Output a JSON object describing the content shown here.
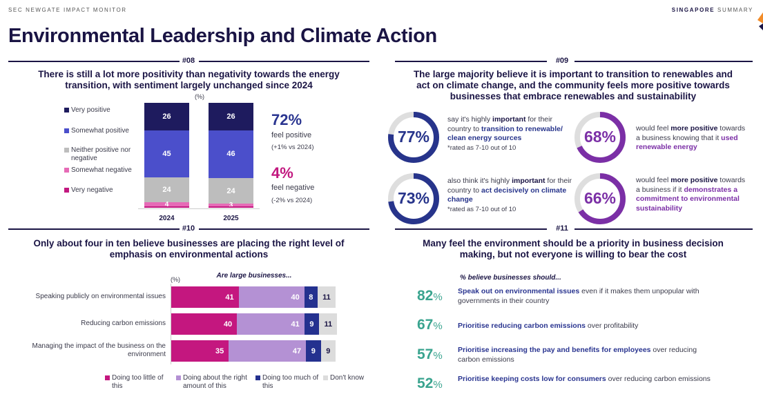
{
  "header": {
    "brand": "SEC NEWGATE IMPACT MONITOR",
    "region_bold": "SINGAPORE",
    "region_rest": " SUMMARY",
    "title": "Environmental Leadership and Climate Action"
  },
  "colors": {
    "navy": "#1e1b5e",
    "blue": "#4b4fcb",
    "gray": "#bdbdbd",
    "pink": "#e66bb6",
    "magenta": "#c2187f",
    "donut_blue": "#27348b",
    "donut_purple": "#7b2fa6",
    "teal": "#3aa48f",
    "lavender": "#b491d4",
    "dark_blue": "#24318f",
    "light_gray": "#dcdcdc"
  },
  "s08": {
    "number": "#08",
    "heading": [
      "There is still a lot more positivity than negativity towards the energy",
      "transition, with sentiment largely unchanged since 2024"
    ],
    "positive": {
      "value": "72%",
      "label": "feel positive",
      "change": "(+1% vs 2024)"
    },
    "negative": {
      "value": "4%",
      "label": "feel negative",
      "change": "(-2% vs 2024)"
    }
  },
  "s09": {
    "number": "#09",
    "heading": [
      "The large majority believe it is important to transition to renewables and",
      "act on climate change, and the community feels more positive towards",
      "businesses that embrace renewables and sustainability"
    ],
    "donuts": [
      {
        "value": 77,
        "label": "77%",
        "color": "#27348b",
        "text": [
          [
            "say it's highly ",
            ""
          ],
          [
            "important",
            "b"
          ],
          [
            " for their country to ",
            ""
          ],
          [
            "transition to renewable/ clean energy sources",
            "bc"
          ]
        ],
        "note": "*rated as 7-10 out of 10"
      },
      {
        "value": 68,
        "label": "68%",
        "color": "#7b2fa6",
        "text": [
          [
            "would feel ",
            ""
          ],
          [
            "more positive",
            "b"
          ],
          [
            " towards a business knowing that it ",
            ""
          ],
          [
            "used renewable energy",
            "bc"
          ]
        ],
        "note": ""
      },
      {
        "value": 73,
        "label": "73%",
        "color": "#27348b",
        "text": [
          [
            "also think it's highly ",
            ""
          ],
          [
            "important",
            "b"
          ],
          [
            " for their country to ",
            ""
          ],
          [
            "act decisively on climate change",
            "bc"
          ]
        ],
        "note": "*rated as 7-10 out of 10"
      },
      {
        "value": 66,
        "label": "66%",
        "color": "#7b2fa6",
        "text": [
          [
            "would feel ",
            ""
          ],
          [
            "more positive",
            "b"
          ],
          [
            " towards a business if it ",
            ""
          ],
          [
            "demonstrates a commitment to environmental sustainability",
            "bc"
          ]
        ],
        "note": ""
      }
    ]
  },
  "s10": {
    "number": "#10",
    "heading": [
      "Only about four in ten believe businesses are placing the right level of",
      "emphasis on environmental actions"
    ]
  },
  "s11": {
    "number": "#11",
    "heading": [
      "Many feel the environment should be a priority in business decision",
      "making, but not everyone is willing to bear the cost"
    ],
    "subtitle": "% believe businesses should...",
    "items": [
      {
        "value": "82",
        "pct": "%",
        "bold": "Speak out on environmental issues",
        "rest": " even if it makes them unpopular with governments in their country"
      },
      {
        "value": "67",
        "pct": "%",
        "bold": "Prioritise reducing carbon emissions",
        "rest": " over profitability"
      },
      {
        "value": "57",
        "pct": "%",
        "bold": "Prioritise increasing the pay and benefits for employees",
        "rest": " over reducing carbon emissions"
      },
      {
        "value": "52",
        "pct": "%",
        "bold": "Prioritise keeping costs low for consumers",
        "rest": " over reducing carbon emissions"
      }
    ]
  },
  "chart_data": [
    {
      "type": "bar",
      "stacked": true,
      "orientation": "vertical",
      "unit": "(%)",
      "categories": [
        "2024",
        "2025"
      ],
      "series": [
        {
          "name": "Very positive",
          "color": "#1e1b5e",
          "values": [
            26,
            26
          ]
        },
        {
          "name": "Somewhat positive",
          "color": "#4b4fcb",
          "values": [
            45,
            46
          ]
        },
        {
          "name": "Neither positive nor negative",
          "color": "#bdbdbd",
          "values": [
            24,
            24
          ]
        },
        {
          "name": "Somewhat negative",
          "color": "#e66bb6",
          "values": [
            4,
            3
          ]
        },
        {
          "name": "Very negative",
          "color": "#c2187f",
          "values": [
            1,
            1
          ]
        }
      ],
      "legend": "left"
    },
    {
      "type": "bar",
      "stacked": true,
      "orientation": "horizontal",
      "unit": "(%)",
      "title": "Are large businesses...",
      "categories": [
        "Speaking publicly on environmental issues",
        "Reducing carbon emissions",
        "Managing the impact of the business on the environment"
      ],
      "series": [
        {
          "name": "Doing too little of this",
          "color": "#c4177f",
          "values": [
            41,
            40,
            35
          ]
        },
        {
          "name": "Doing about the right amount of this",
          "color": "#b491d4",
          "values": [
            40,
            41,
            47
          ]
        },
        {
          "name": "Doing too much of this",
          "color": "#24318f",
          "values": [
            8,
            9,
            9
          ]
        },
        {
          "name": "Don't know",
          "color": "#dcdcdc",
          "values": [
            11,
            11,
            9
          ]
        }
      ],
      "legend": "bottom"
    }
  ]
}
